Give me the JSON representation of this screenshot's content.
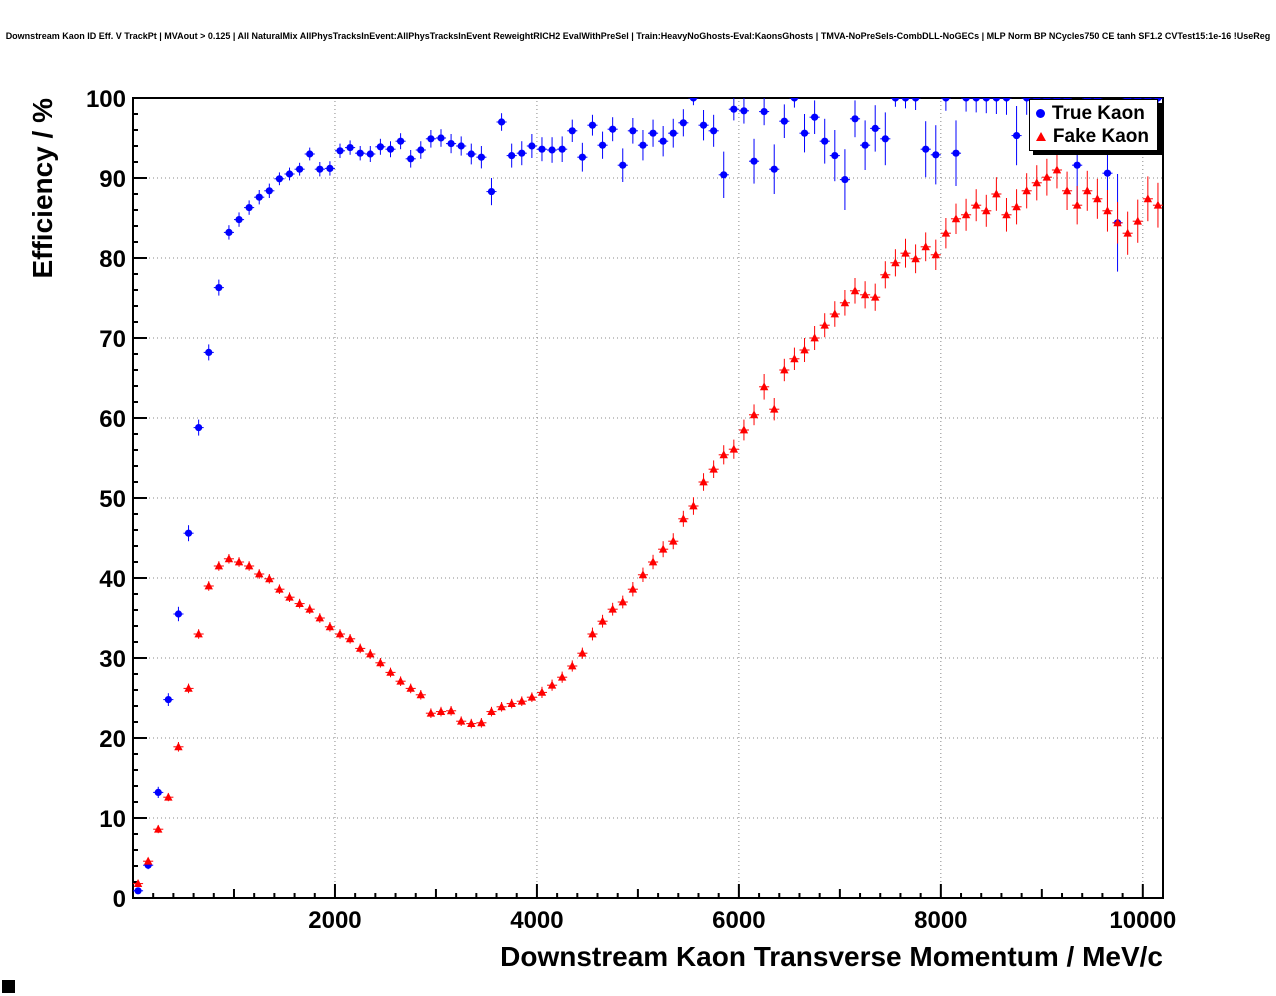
{
  "chart_data": {
    "type": "scatter",
    "title": "Downstream Kaon ID Eff. V TrackPt | MVAout > 0.125 | All NaturalMix AllPhysTracksInEvent:AllPhysTracksInEvent ReweightRICH2 EvalWithPreSel | Train:HeavyNoGhosts-Eval:KaonsGhosts | TMVA-NoPreSels-CombDLL-NoGECs | MLP Norm BP NCycles750 CE tanh SF1.2 CVTest15:1e-16 !UseReg",
    "xlabel": "Downstream Kaon Transverse Momentum / MeV/c",
    "ylabel": "Efficiency / %",
    "xlim": [
      0,
      10200
    ],
    "ylim": [
      0,
      100
    ],
    "x_ticks": [
      2000,
      4000,
      6000,
      8000,
      10000
    ],
    "y_ticks": [
      0,
      10,
      20,
      30,
      40,
      50,
      60,
      70,
      80,
      90,
      100
    ],
    "grid": "dotted-major",
    "legend_position": "top-right",
    "x_bin_halfwidth": 50,
    "series": [
      {
        "name": "True Kaon",
        "color": "#0000ff",
        "marker": "circle",
        "points": [
          [
            50,
            0.9,
            0.4
          ],
          [
            150,
            4.1,
            0.5
          ],
          [
            250,
            13.2,
            0.7
          ],
          [
            350,
            24.8,
            0.8
          ],
          [
            450,
            35.5,
            0.9
          ],
          [
            550,
            45.6,
            1.0
          ],
          [
            650,
            58.8,
            1.0
          ],
          [
            750,
            68.2,
            1.0
          ],
          [
            850,
            76.3,
            1.0
          ],
          [
            950,
            83.2,
            0.9
          ],
          [
            1050,
            84.8,
            0.9
          ],
          [
            1150,
            86.3,
            0.9
          ],
          [
            1250,
            87.6,
            0.9
          ],
          [
            1350,
            88.4,
            0.9
          ],
          [
            1450,
            89.9,
            0.8
          ],
          [
            1550,
            90.5,
            0.8
          ],
          [
            1650,
            91.1,
            0.8
          ],
          [
            1750,
            93.0,
            0.8
          ],
          [
            1850,
            91.1,
            0.9
          ],
          [
            1950,
            91.2,
            0.9
          ],
          [
            2050,
            93.4,
            0.9
          ],
          [
            2150,
            93.8,
            0.9
          ],
          [
            2250,
            93.1,
            0.9
          ],
          [
            2350,
            93.0,
            1.0
          ],
          [
            2450,
            93.9,
            1.0
          ],
          [
            2550,
            93.6,
            1.0
          ],
          [
            2650,
            94.6,
            1.0
          ],
          [
            2750,
            92.4,
            1.1
          ],
          [
            2850,
            93.5,
            1.1
          ],
          [
            2950,
            94.9,
            1.1
          ],
          [
            3050,
            95.0,
            1.1
          ],
          [
            3150,
            94.3,
            1.2
          ],
          [
            3250,
            94.0,
            1.2
          ],
          [
            3350,
            93.0,
            1.3
          ],
          [
            3450,
            92.6,
            1.4
          ],
          [
            3550,
            88.3,
            1.7
          ],
          [
            3650,
            97.0,
            1.1
          ],
          [
            3750,
            92.8,
            1.5
          ],
          [
            3850,
            93.1,
            1.5
          ],
          [
            3950,
            94.0,
            1.5
          ],
          [
            4050,
            93.6,
            1.5
          ],
          [
            4150,
            93.5,
            1.6
          ],
          [
            4250,
            93.6,
            1.6
          ],
          [
            4350,
            95.9,
            1.4
          ],
          [
            4450,
            92.6,
            1.8
          ],
          [
            4550,
            96.6,
            1.3
          ],
          [
            4650,
            94.1,
            1.7
          ],
          [
            4750,
            96.1,
            1.5
          ],
          [
            4850,
            91.6,
            2.1
          ],
          [
            4950,
            95.9,
            1.6
          ],
          [
            5050,
            94.1,
            1.9
          ],
          [
            5150,
            95.6,
            1.7
          ],
          [
            5250,
            94.6,
            1.9
          ],
          [
            5350,
            95.6,
            1.8
          ],
          [
            5450,
            96.9,
            1.7
          ],
          [
            5550,
            100.0,
            0.9
          ],
          [
            5650,
            96.6,
            1.9
          ],
          [
            5750,
            95.9,
            2.0
          ],
          [
            5850,
            90.4,
            2.9
          ],
          [
            5950,
            98.6,
            1.4
          ],
          [
            6050,
            98.4,
            1.6
          ],
          [
            6150,
            92.1,
            2.8
          ],
          [
            6250,
            98.3,
            1.7
          ],
          [
            6350,
            91.1,
            3.1
          ],
          [
            6450,
            97.1,
            2.1
          ],
          [
            6550,
            100.0,
            1.2
          ],
          [
            6650,
            95.6,
            2.4
          ],
          [
            6750,
            97.6,
            2.1
          ],
          [
            6850,
            94.6,
            2.8
          ],
          [
            6950,
            92.8,
            3.2
          ],
          [
            7050,
            89.8,
            3.8
          ],
          [
            7150,
            97.4,
            2.3
          ],
          [
            7250,
            94.1,
            3.1
          ],
          [
            7350,
            96.2,
            2.9
          ],
          [
            7450,
            94.9,
            3.3
          ],
          [
            7550,
            100.0,
            1.1
          ],
          [
            7650,
            100.0,
            1.3
          ],
          [
            7750,
            100.0,
            1.5
          ],
          [
            7850,
            93.6,
            3.5
          ],
          [
            7950,
            92.9,
            3.7
          ],
          [
            8050,
            100.0,
            1.6
          ],
          [
            8150,
            93.1,
            4.1
          ],
          [
            8250,
            100.0,
            1.7
          ],
          [
            8350,
            100.0,
            1.8
          ],
          [
            8450,
            100.0,
            1.9
          ],
          [
            8550,
            100.0,
            2.0
          ],
          [
            8650,
            100.0,
            2.1
          ],
          [
            8750,
            95.3,
            3.7
          ],
          [
            8850,
            100.0,
            2.1
          ],
          [
            8950,
            100.0,
            2.2
          ],
          [
            9050,
            100.0,
            2.3
          ],
          [
            9150,
            100.0,
            2.4
          ],
          [
            9250,
            100.0,
            2.5
          ],
          [
            9350,
            91.6,
            4.5
          ],
          [
            9450,
            100.0,
            2.6
          ],
          [
            9550,
            100.0,
            2.7
          ],
          [
            9650,
            90.6,
            5.1
          ],
          [
            9750,
            84.4,
            6.1
          ],
          [
            9850,
            100.0,
            2.8
          ],
          [
            9950,
            100.0,
            3.0
          ],
          [
            10050,
            100.0,
            3.1
          ],
          [
            10150,
            100.0,
            3.3
          ]
        ]
      },
      {
        "name": "Fake Kaon",
        "color": "#ff0000",
        "marker": "triangle",
        "points": [
          [
            50,
            1.8,
            0.4
          ],
          [
            150,
            4.6,
            0.4
          ],
          [
            250,
            8.6,
            0.5
          ],
          [
            350,
            12.6,
            0.5
          ],
          [
            450,
            18.9,
            0.6
          ],
          [
            550,
            26.2,
            0.6
          ],
          [
            650,
            33.0,
            0.6
          ],
          [
            750,
            39.0,
            0.6
          ],
          [
            850,
            41.5,
            0.6
          ],
          [
            950,
            42.4,
            0.6
          ],
          [
            1050,
            42.0,
            0.6
          ],
          [
            1150,
            41.5,
            0.6
          ],
          [
            1250,
            40.5,
            0.6
          ],
          [
            1350,
            39.9,
            0.6
          ],
          [
            1450,
            38.6,
            0.6
          ],
          [
            1550,
            37.6,
            0.6
          ],
          [
            1650,
            36.8,
            0.6
          ],
          [
            1750,
            36.1,
            0.6
          ],
          [
            1850,
            35.0,
            0.6
          ],
          [
            1950,
            33.9,
            0.6
          ],
          [
            2050,
            33.0,
            0.6
          ],
          [
            2150,
            32.4,
            0.6
          ],
          [
            2250,
            31.2,
            0.6
          ],
          [
            2350,
            30.5,
            0.6
          ],
          [
            2450,
            29.4,
            0.6
          ],
          [
            2550,
            28.2,
            0.6
          ],
          [
            2650,
            27.1,
            0.6
          ],
          [
            2750,
            26.2,
            0.6
          ],
          [
            2850,
            25.4,
            0.6
          ],
          [
            2950,
            23.1,
            0.6
          ],
          [
            3050,
            23.3,
            0.6
          ],
          [
            3150,
            23.4,
            0.6
          ],
          [
            3250,
            22.1,
            0.6
          ],
          [
            3350,
            21.8,
            0.6
          ],
          [
            3450,
            21.9,
            0.6
          ],
          [
            3550,
            23.3,
            0.6
          ],
          [
            3650,
            23.9,
            0.6
          ],
          [
            3750,
            24.3,
            0.6
          ],
          [
            3850,
            24.6,
            0.6
          ],
          [
            3950,
            25.1,
            0.6
          ],
          [
            4050,
            25.7,
            0.7
          ],
          [
            4150,
            26.6,
            0.7
          ],
          [
            4250,
            27.6,
            0.7
          ],
          [
            4350,
            29.0,
            0.7
          ],
          [
            4450,
            30.6,
            0.7
          ],
          [
            4550,
            33.0,
            0.8
          ],
          [
            4650,
            34.6,
            0.8
          ],
          [
            4750,
            36.1,
            0.8
          ],
          [
            4850,
            37.0,
            0.8
          ],
          [
            4950,
            38.6,
            0.9
          ],
          [
            5050,
            40.4,
            0.9
          ],
          [
            5150,
            42.0,
            0.9
          ],
          [
            5250,
            43.6,
            1.0
          ],
          [
            5350,
            44.6,
            1.0
          ],
          [
            5450,
            47.4,
            1.0
          ],
          [
            5550,
            49.0,
            1.1
          ],
          [
            5650,
            52.0,
            1.1
          ],
          [
            5750,
            53.6,
            1.1
          ],
          [
            5850,
            55.4,
            1.2
          ],
          [
            5950,
            56.1,
            1.2
          ],
          [
            6050,
            58.5,
            1.3
          ],
          [
            6150,
            60.4,
            1.3
          ],
          [
            6250,
            63.9,
            1.6
          ],
          [
            6350,
            61.1,
            1.4
          ],
          [
            6450,
            66.0,
            1.4
          ],
          [
            6550,
            67.4,
            1.4
          ],
          [
            6650,
            68.5,
            1.5
          ],
          [
            6750,
            70.0,
            1.5
          ],
          [
            6850,
            71.6,
            1.5
          ],
          [
            6950,
            73.0,
            1.6
          ],
          [
            7050,
            74.4,
            1.6
          ],
          [
            7150,
            75.9,
            1.6
          ],
          [
            7250,
            75.4,
            1.7
          ],
          [
            7350,
            75.1,
            1.7
          ],
          [
            7450,
            77.9,
            1.7
          ],
          [
            7550,
            79.4,
            1.7
          ],
          [
            7650,
            80.6,
            1.8
          ],
          [
            7750,
            79.9,
            1.8
          ],
          [
            7850,
            81.4,
            1.8
          ],
          [
            7950,
            80.4,
            1.9
          ],
          [
            8050,
            83.1,
            1.9
          ],
          [
            8150,
            84.9,
            1.9
          ],
          [
            8250,
            85.4,
            2.0
          ],
          [
            8350,
            86.6,
            2.0
          ],
          [
            8450,
            85.9,
            2.0
          ],
          [
            8550,
            88.0,
            2.1
          ],
          [
            8650,
            85.4,
            2.1
          ],
          [
            8750,
            86.4,
            2.2
          ],
          [
            8850,
            88.4,
            2.2
          ],
          [
            8950,
            89.4,
            2.2
          ],
          [
            9050,
            90.1,
            2.3
          ],
          [
            9150,
            91.0,
            2.3
          ],
          [
            9250,
            88.4,
            2.4
          ],
          [
            9350,
            86.6,
            2.4
          ],
          [
            9450,
            88.4,
            2.5
          ],
          [
            9550,
            87.4,
            2.5
          ],
          [
            9650,
            85.9,
            2.6
          ],
          [
            9750,
            84.4,
            2.6
          ],
          [
            9850,
            83.1,
            2.7
          ],
          [
            9950,
            84.6,
            2.7
          ],
          [
            10050,
            87.4,
            2.8
          ],
          [
            10150,
            86.6,
            2.8
          ]
        ]
      }
    ]
  }
}
